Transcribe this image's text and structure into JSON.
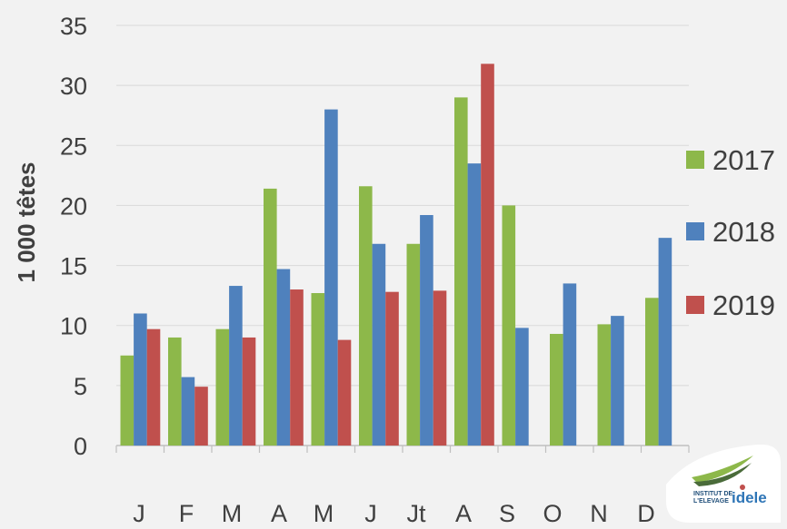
{
  "colors": {
    "background": "#f2f2f2",
    "gridline": "#d9d9d9",
    "axis": "#bfbfbf",
    "text": "#404040",
    "series_2017": "#8db84a",
    "series_2018": "#4f81bd",
    "series_2019": "#c0504d"
  },
  "logo": {
    "text_small_1": "INSTITUT DE",
    "text_small_2": "L'ELEVAGE",
    "text_big": "idele",
    "icon": "idele-logo"
  },
  "chart_data": {
    "type": "bar",
    "ylabel": "1 000 têtes",
    "ylim": [
      0,
      35
    ],
    "yticks": [
      0,
      5,
      10,
      15,
      20,
      25,
      30,
      35
    ],
    "grid": "horizontal",
    "legend_position": "right",
    "categories": [
      "J",
      "F",
      "M",
      "A",
      "M",
      "J",
      "Jt",
      "A",
      "S",
      "O",
      "N",
      "D"
    ],
    "series": [
      {
        "name": "2017",
        "color": "#8db84a",
        "values": [
          7.5,
          9.0,
          9.7,
          21.4,
          12.7,
          21.6,
          16.8,
          29.0,
          20.0,
          9.3,
          10.1,
          12.3
        ]
      },
      {
        "name": "2018",
        "color": "#4f81bd",
        "values": [
          11.0,
          5.7,
          13.3,
          14.7,
          28.0,
          16.8,
          19.2,
          23.5,
          9.8,
          13.5,
          10.8,
          17.3
        ]
      },
      {
        "name": "2019",
        "color": "#c0504d",
        "values": [
          9.7,
          4.9,
          9.0,
          13.0,
          8.8,
          12.8,
          12.9,
          31.8,
          null,
          null,
          null,
          null
        ]
      }
    ]
  }
}
